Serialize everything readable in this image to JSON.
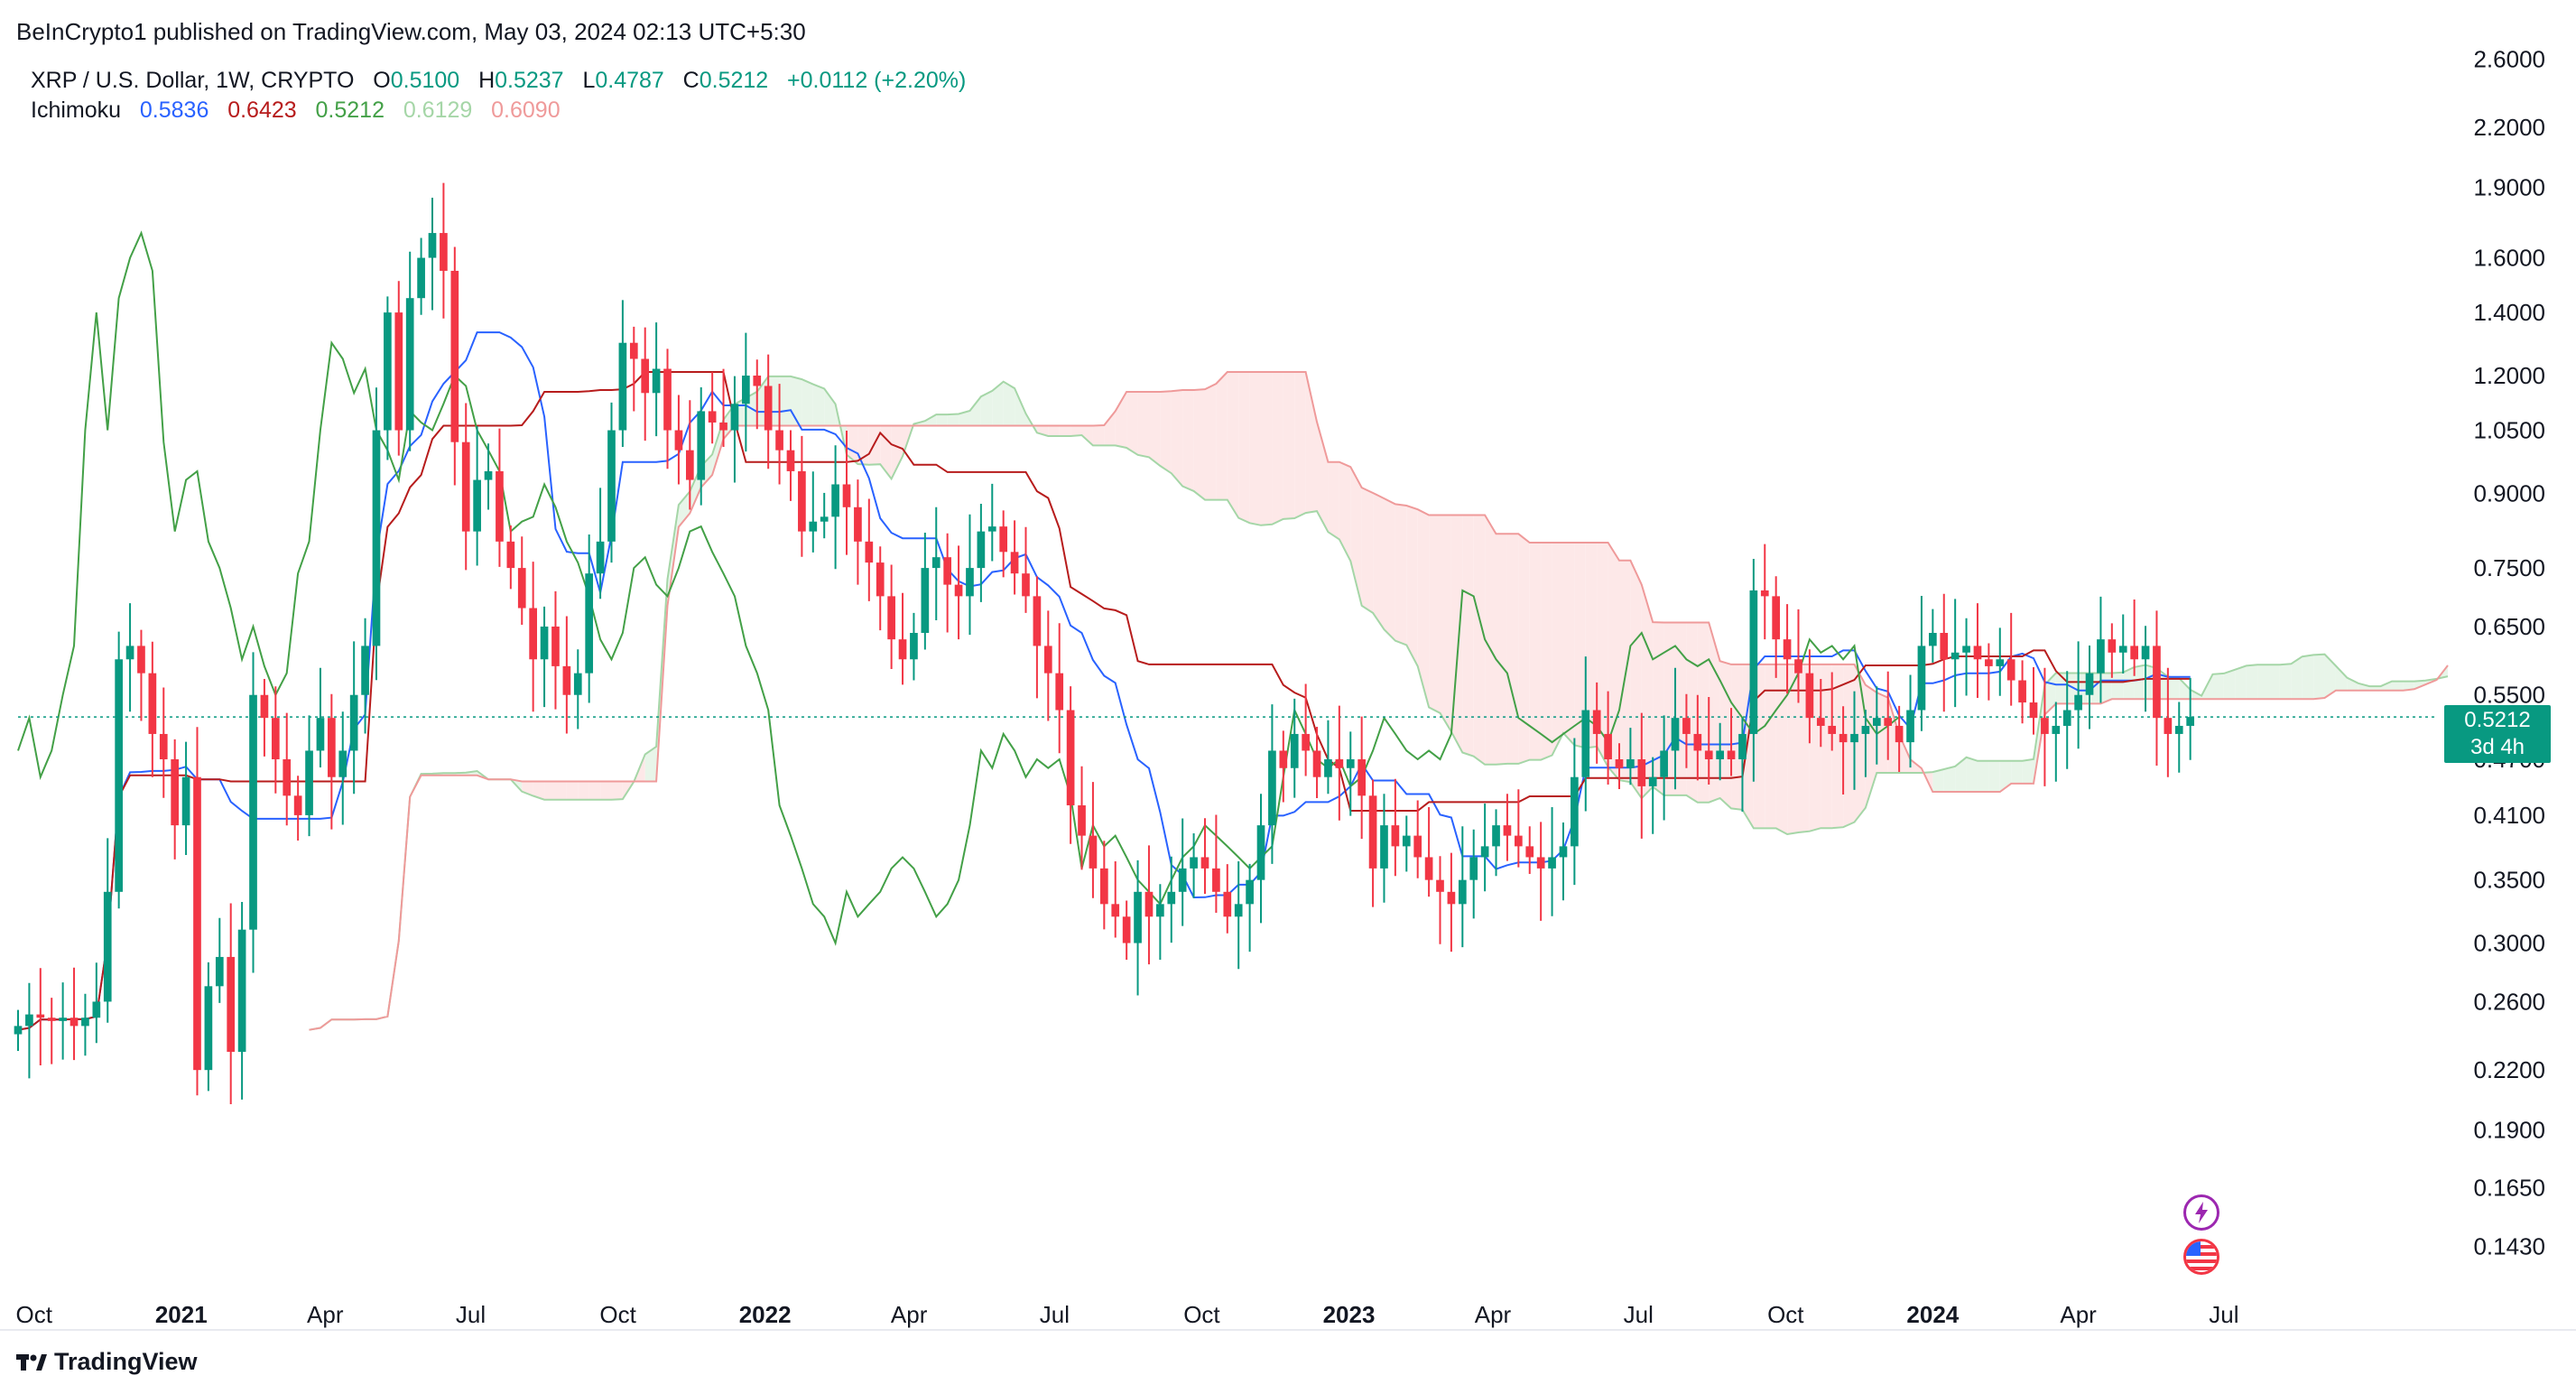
{
  "header": {
    "publisher": "BeInCrypto1 published on TradingView.com, May 03, 2024 02:13 UTC+5:30",
    "symbol": "XRP / U.S. Dollar, 1W, CRYPTO",
    "ohlc": {
      "o_label": "O",
      "o": "0.5100",
      "h_label": "H",
      "h": "0.5237",
      "l_label": "L",
      "l": "0.4787",
      "c_label": "C",
      "c": "0.5212",
      "change": "+0.0112 (+2.20%)"
    },
    "indicator": {
      "name": "Ichimoku",
      "values": [
        "0.5836",
        "0.6423",
        "0.5212",
        "0.6129",
        "0.6090"
      ],
      "colors": [
        "#2962ff",
        "#b71c1c",
        "#43a047",
        "#a5d6a7",
        "#ef9a9a"
      ]
    }
  },
  "price_badge": {
    "price": "0.5212",
    "countdown": "3d 4h"
  },
  "branding": {
    "logo_text": "TradingView"
  },
  "icons": [
    "lightning-icon",
    "us-flag-icon"
  ],
  "colors": {
    "up": "#089981",
    "down": "#f23645",
    "tenkan": "#2962ff",
    "kijun": "#b71c1c",
    "chikou": "#43a047",
    "cloud_bull": "#a5d6a7",
    "cloud_bear": "#ef9a9a"
  },
  "chart_data": {
    "type": "candlestick",
    "scale": "log",
    "ylim": [
      0.12,
      2.75
    ],
    "y_ticks": [
      "2.6000",
      "2.2000",
      "1.9000",
      "1.6000",
      "1.4000",
      "1.2000",
      "1.0500",
      "0.9000",
      "0.7500",
      "0.6500",
      "0.5500",
      "0.4700",
      "0.4100",
      "0.3500",
      "0.3000",
      "0.2600",
      "0.2200",
      "0.1900",
      "0.1650",
      "0.1430"
    ],
    "x_ticks": [
      {
        "label": "Oct",
        "date": "2020-10-01",
        "bold": false
      },
      {
        "label": "2021",
        "date": "2021-01-01",
        "bold": true
      },
      {
        "label": "Apr",
        "date": "2021-04-01",
        "bold": false
      },
      {
        "label": "Jul",
        "date": "2021-07-01",
        "bold": false
      },
      {
        "label": "Oct",
        "date": "2021-10-01",
        "bold": false
      },
      {
        "label": "2022",
        "date": "2022-01-01",
        "bold": true
      },
      {
        "label": "Apr",
        "date": "2022-04-01",
        "bold": false
      },
      {
        "label": "Jul",
        "date": "2022-07-01",
        "bold": false
      },
      {
        "label": "Oct",
        "date": "2022-10-01",
        "bold": false
      },
      {
        "label": "2023",
        "date": "2023-01-01",
        "bold": true
      },
      {
        "label": "Apr",
        "date": "2023-04-01",
        "bold": false
      },
      {
        "label": "Jul",
        "date": "2023-07-01",
        "bold": false
      },
      {
        "label": "Oct",
        "date": "2023-10-01",
        "bold": false
      },
      {
        "label": "2024",
        "date": "2024-01-01",
        "bold": true
      },
      {
        "label": "Apr",
        "date": "2024-04-01",
        "bold": false
      },
      {
        "label": "Jul",
        "date": "2024-07-01",
        "bold": false
      }
    ],
    "x_range": [
      "2020-09-21",
      "2024-11-18"
    ],
    "last_price": 0.5212,
    "candles_close": [
      0.245,
      0.252,
      0.25,
      0.248,
      0.25,
      0.245,
      0.25,
      0.26,
      0.34,
      0.6,
      0.62,
      0.58,
      0.5,
      0.47,
      0.4,
      0.45,
      0.22,
      0.27,
      0.29,
      0.23,
      0.31,
      0.55,
      0.52,
      0.47,
      0.43,
      0.41,
      0.48,
      0.52,
      0.45,
      0.48,
      0.55,
      0.62,
      1.05,
      1.4,
      1.05,
      1.45,
      1.6,
      1.7,
      1.55,
      1.02,
      0.82,
      0.93,
      0.95,
      0.8,
      0.75,
      0.68,
      0.6,
      0.65,
      0.59,
      0.55,
      0.58,
      0.74,
      0.8,
      1.05,
      1.3,
      1.25,
      1.15,
      1.22,
      1.05,
      1.0,
      0.93,
      1.1,
      1.07,
      1.05,
      1.12,
      1.2,
      1.17,
      1.05,
      1.0,
      0.95,
      0.82,
      0.84,
      0.85,
      0.92,
      0.87,
      0.8,
      0.76,
      0.7,
      0.63,
      0.6,
      0.64,
      0.75,
      0.77,
      0.72,
      0.7,
      0.75,
      0.82,
      0.83,
      0.78,
      0.74,
      0.7,
      0.62,
      0.58,
      0.53,
      0.42,
      0.39,
      0.36,
      0.33,
      0.32,
      0.3,
      0.34,
      0.32,
      0.33,
      0.34,
      0.36,
      0.37,
      0.36,
      0.34,
      0.32,
      0.33,
      0.35,
      0.4,
      0.48,
      0.46,
      0.5,
      0.48,
      0.45,
      0.47,
      0.46,
      0.47,
      0.43,
      0.36,
      0.4,
      0.38,
      0.39,
      0.37,
      0.35,
      0.34,
      0.33,
      0.35,
      0.37,
      0.38,
      0.4,
      0.39,
      0.38,
      0.37,
      0.36,
      0.37,
      0.38,
      0.45,
      0.53,
      0.5,
      0.47,
      0.46,
      0.47,
      0.44,
      0.45,
      0.48,
      0.52,
      0.5,
      0.48,
      0.47,
      0.48,
      0.47,
      0.5,
      0.71,
      0.7,
      0.63,
      0.6,
      0.58,
      0.52,
      0.51,
      0.5,
      0.49,
      0.5,
      0.51,
      0.52,
      0.51,
      0.49,
      0.53,
      0.62,
      0.64,
      0.6,
      0.61,
      0.62,
      0.6,
      0.59,
      0.6,
      0.57,
      0.54,
      0.52,
      0.5,
      0.51,
      0.53,
      0.55,
      0.58,
      0.63,
      0.61,
      0.62,
      0.6,
      0.62,
      0.52,
      0.5,
      0.51,
      0.5212
    ]
  }
}
